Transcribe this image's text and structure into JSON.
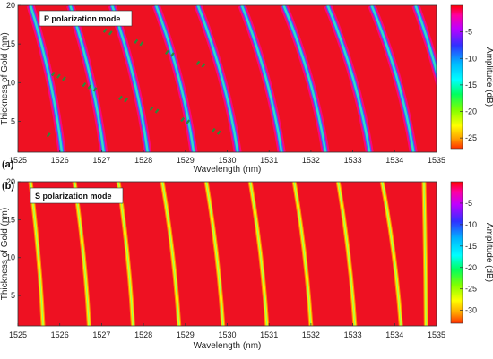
{
  "chart_data": [
    {
      "type": "heatmap",
      "panel_label": "(a)",
      "annotation": "P polarization mode",
      "xlabel": "Wavelength (nm)",
      "ylabel": "Thickness of Gold (nm)",
      "colorbar_label": "Amplitude (dB)",
      "xlim": [
        1525,
        1535
      ],
      "ylim": [
        1,
        20
      ],
      "x_ticks": [
        "1525",
        "1526",
        "1527",
        "1528",
        "1529",
        "1530",
        "1531",
        "1532",
        "1533",
        "1534",
        "1535"
      ],
      "y_ticks": [
        "5",
        "10",
        "15",
        "20"
      ],
      "colorbar_range": [
        -27,
        0
      ],
      "colorbar_ticks": [
        "-5",
        "-10",
        "-15",
        "-20",
        "-25"
      ],
      "resonances": [
        {
          "at_thickness_1nm": 1526.05,
          "at_thickness_20nm": 1525.3
        },
        {
          "at_thickness_1nm": 1527.05,
          "at_thickness_20nm": 1526.25
        },
        {
          "at_thickness_1nm": 1528.1,
          "at_thickness_20nm": 1527.25
        },
        {
          "at_thickness_1nm": 1529.2,
          "at_thickness_20nm": 1528.3
        },
        {
          "at_thickness_1nm": 1530.25,
          "at_thickness_20nm": 1529.3
        },
        {
          "at_thickness_1nm": 1531.3,
          "at_thickness_20nm": 1530.35
        },
        {
          "at_thickness_1nm": 1532.35,
          "at_thickness_20nm": 1531.35
        },
        {
          "at_thickness_1nm": 1533.4,
          "at_thickness_20nm": 1532.4
        },
        {
          "at_thickness_1nm": 1534.45,
          "at_thickness_20nm": 1533.45
        },
        {
          "at_thickness_20nm": 1534.5
        }
      ]
    },
    {
      "type": "heatmap",
      "panel_label": "(b)",
      "annotation": "S polarization mode",
      "xlabel": "Wavelength (nm)",
      "ylabel": "Thickness of Gold (nm)",
      "colorbar_label": "Amplitude (dB)",
      "xlim": [
        1525,
        1535
      ],
      "ylim": [
        1,
        20
      ],
      "x_ticks": [
        "1525",
        "1526",
        "1527",
        "1528",
        "1529",
        "1530",
        "1531",
        "1532",
        "1533",
        "1534",
        "1535"
      ],
      "y_ticks": [
        "5",
        "10",
        "15",
        "20"
      ],
      "colorbar_range": [
        -33,
        0
      ],
      "colorbar_ticks": [
        "-5",
        "-10",
        "-15",
        "-20",
        "-25",
        "-30"
      ],
      "resonances": [
        {
          "at_thickness_1nm": 1525.6,
          "at_thickness_20nm": 1525.3
        },
        {
          "at_thickness_1nm": 1526.7,
          "at_thickness_20nm": 1526.35
        },
        {
          "at_thickness_1nm": 1527.75,
          "at_thickness_20nm": 1527.4
        },
        {
          "at_thickness_1nm": 1528.85,
          "at_thickness_20nm": 1528.45
        },
        {
          "at_thickness_1nm": 1529.9,
          "at_thickness_20nm": 1529.5
        },
        {
          "at_thickness_1nm": 1530.95,
          "at_thickness_20nm": 1530.55
        },
        {
          "at_thickness_1nm": 1532.0,
          "at_thickness_20nm": 1531.6
        },
        {
          "at_thickness_1nm": 1533.05,
          "at_thickness_20nm": 1532.65
        },
        {
          "at_thickness_1nm": 1534.15,
          "at_thickness_20nm": 1533.7
        },
        {
          "at_thickness_1nm": 1534.75,
          "at_thickness_20nm": 1534.7
        }
      ]
    }
  ]
}
